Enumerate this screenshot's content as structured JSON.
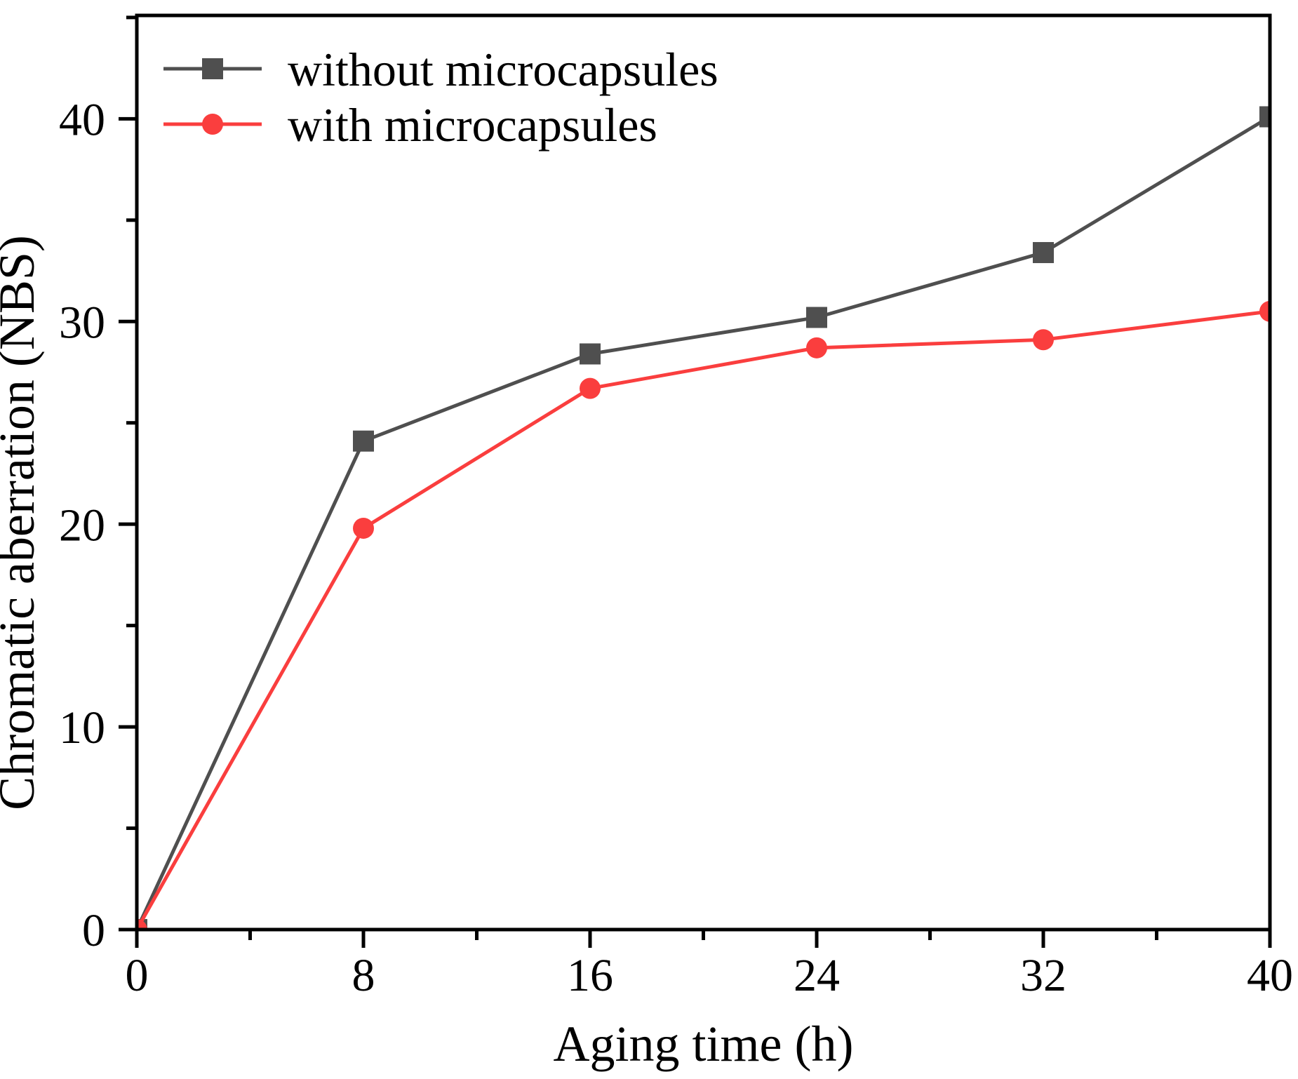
{
  "figure": {
    "background": "#ffffff",
    "axis_color": "#000000",
    "text_color": "#000000"
  },
  "chart_data": {
    "type": "line",
    "title": "",
    "xlabel": "Aging time (h)",
    "ylabel": "Chromatic aberration (NBS)",
    "x": [
      0,
      8,
      16,
      24,
      32,
      40
    ],
    "series": [
      {
        "name": "without microcapsules",
        "color": "#4f4f4f",
        "marker": "square",
        "values": [
          0,
          24.1,
          28.4,
          30.2,
          33.4,
          40.1
        ]
      },
      {
        "name": "with microcapsules",
        "color": "#fa3e3e",
        "marker": "circle",
        "values": [
          0,
          19.8,
          26.7,
          28.7,
          29.1,
          30.5
        ]
      }
    ],
    "xlim": [
      0,
      40
    ],
    "ylim": [
      0,
      45.1
    ],
    "x_major_ticks": [
      0,
      8,
      16,
      24,
      32,
      40
    ],
    "x_minor_ticks": [
      4,
      12,
      20,
      28,
      36
    ],
    "y_major_ticks": [
      0,
      10,
      20,
      30,
      40
    ],
    "y_minor_ticks": [
      5,
      15,
      25,
      35,
      45
    ],
    "grid": false,
    "legend_position": "top-left",
    "marker_size": 30,
    "line_width": 5
  }
}
